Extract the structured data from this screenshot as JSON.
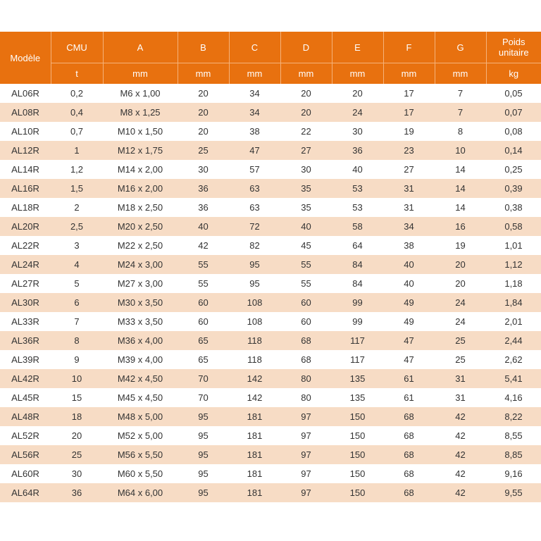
{
  "table": {
    "columns": [
      {
        "name": "Modèle",
        "unit": ""
      },
      {
        "name": "CMU",
        "unit": "t"
      },
      {
        "name": "A",
        "unit": "mm"
      },
      {
        "name": "B",
        "unit": "mm"
      },
      {
        "name": "C",
        "unit": "mm"
      },
      {
        "name": "D",
        "unit": "mm"
      },
      {
        "name": "E",
        "unit": "mm"
      },
      {
        "name": "F",
        "unit": "mm"
      },
      {
        "name": "G",
        "unit": "mm"
      },
      {
        "name": "Poids unitaire",
        "unit": "kg"
      }
    ],
    "rows": [
      [
        "AL06R",
        "0,2",
        "M6 x 1,00",
        "20",
        "34",
        "20",
        "20",
        "17",
        "7",
        "0,05"
      ],
      [
        "AL08R",
        "0,4",
        "M8 x 1,25",
        "20",
        "34",
        "20",
        "24",
        "17",
        "7",
        "0,07"
      ],
      [
        "AL10R",
        "0,7",
        "M10 x 1,50",
        "20",
        "38",
        "22",
        "30",
        "19",
        "8",
        "0,08"
      ],
      [
        "AL12R",
        "1",
        "M12 x 1,75",
        "25",
        "47",
        "27",
        "36",
        "23",
        "10",
        "0,14"
      ],
      [
        "AL14R",
        "1,2",
        "M14 x 2,00",
        "30",
        "57",
        "30",
        "40",
        "27",
        "14",
        "0,25"
      ],
      [
        "AL16R",
        "1,5",
        "M16 x 2,00",
        "36",
        "63",
        "35",
        "53",
        "31",
        "14",
        "0,39"
      ],
      [
        "AL18R",
        "2",
        "M18 x 2,50",
        "36",
        "63",
        "35",
        "53",
        "31",
        "14",
        "0,38"
      ],
      [
        "AL20R",
        "2,5",
        "M20 x 2,50",
        "40",
        "72",
        "40",
        "58",
        "34",
        "16",
        "0,58"
      ],
      [
        "AL22R",
        "3",
        "M22 x 2,50",
        "42",
        "82",
        "45",
        "64",
        "38",
        "19",
        "1,01"
      ],
      [
        "AL24R",
        "4",
        "M24 x 3,00",
        "55",
        "95",
        "55",
        "84",
        "40",
        "20",
        "1,12"
      ],
      [
        "AL27R",
        "5",
        "M27 x 3,00",
        "55",
        "95",
        "55",
        "84",
        "40",
        "20",
        "1,18"
      ],
      [
        "AL30R",
        "6",
        "M30 x 3,50",
        "60",
        "108",
        "60",
        "99",
        "49",
        "24",
        "1,84"
      ],
      [
        "AL33R",
        "7",
        "M33 x 3,50",
        "60",
        "108",
        "60",
        "99",
        "49",
        "24",
        "2,01"
      ],
      [
        "AL36R",
        "8",
        "M36 x 4,00",
        "65",
        "118",
        "68",
        "117",
        "47",
        "25",
        "2,44"
      ],
      [
        "AL39R",
        "9",
        "M39 x 4,00",
        "65",
        "118",
        "68",
        "117",
        "47",
        "25",
        "2,62"
      ],
      [
        "AL42R",
        "10",
        "M42 x 4,50",
        "70",
        "142",
        "80",
        "135",
        "61",
        "31",
        "5,41"
      ],
      [
        "AL45R",
        "15",
        "M45 x 4,50",
        "70",
        "142",
        "80",
        "135",
        "61",
        "31",
        "4,16"
      ],
      [
        "AL48R",
        "18",
        "M48 x 5,00",
        "95",
        "181",
        "97",
        "150",
        "68",
        "42",
        "8,22"
      ],
      [
        "AL52R",
        "20",
        "M52 x 5,00",
        "95",
        "181",
        "97",
        "150",
        "68",
        "42",
        "8,55"
      ],
      [
        "AL56R",
        "25",
        "M56 x 5,50",
        "95",
        "181",
        "97",
        "150",
        "68",
        "42",
        "8,85"
      ],
      [
        "AL60R",
        "30",
        "M60 x 5,50",
        "95",
        "181",
        "97",
        "150",
        "68",
        "42",
        "9,16"
      ],
      [
        "AL64R",
        "36",
        "M64 x 6,00",
        "95",
        "181",
        "97",
        "150",
        "68",
        "42",
        "9,55"
      ]
    ]
  },
  "colors": {
    "header": "#e8710f",
    "stripe": "#f7dcc5"
  }
}
